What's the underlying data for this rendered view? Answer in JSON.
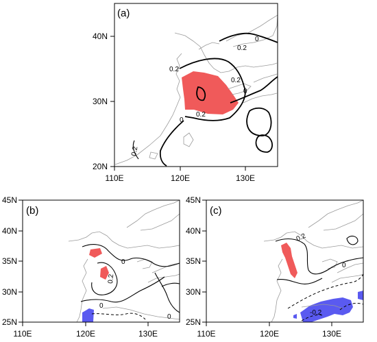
{
  "colors": {
    "positive": "#f05a5a",
    "negative": "#5a5af0",
    "coast": "#9a9a9a"
  },
  "panels": [
    {
      "label": "(a)",
      "x_ticks": [
        "110E",
        "120E",
        "130E"
      ],
      "y_ticks": [
        "40N",
        "30N",
        "20N"
      ],
      "contour_labels": [
        "0.2",
        "0",
        "0.2",
        "0.2",
        "0",
        "0.2",
        "0",
        "0.2"
      ]
    },
    {
      "label": "(b)",
      "x_ticks": [
        "110E",
        "120E",
        "130E"
      ],
      "y_ticks": [
        "45N",
        "40N",
        "35N",
        "30N",
        "25N"
      ],
      "contour_labels": [
        "0",
        "0.2",
        "0",
        "0"
      ]
    },
    {
      "label": "(c)",
      "x_ticks": [
        "110E",
        "120E",
        "130E"
      ],
      "y_ticks": [
        "45N",
        "40N",
        "35N",
        "30N",
        "25N"
      ],
      "contour_labels": [
        "0.2",
        "0",
        "-0.2"
      ]
    }
  ]
}
